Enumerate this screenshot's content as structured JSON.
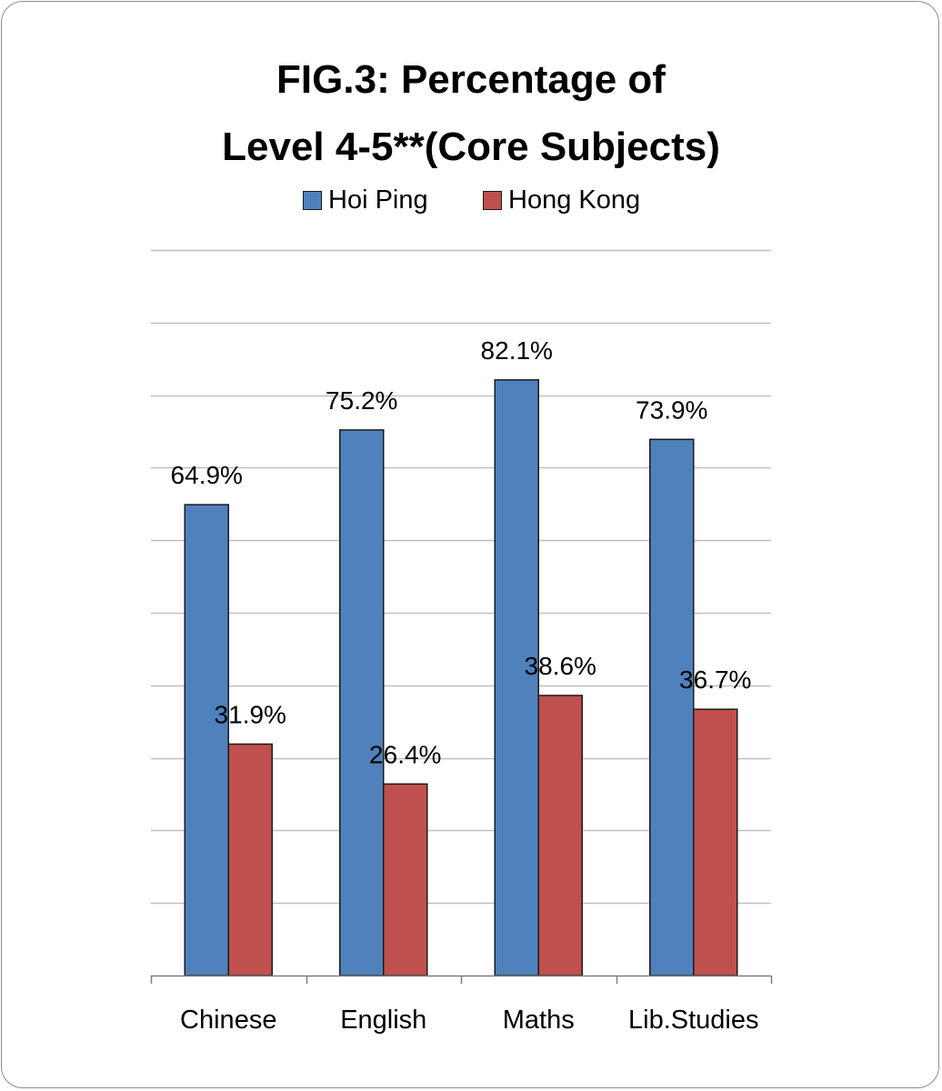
{
  "chart_data": {
    "type": "bar",
    "title_line1": "FIG.3: Percentage of",
    "title_line2": "Level 4-5**(Core Subjects)",
    "xlabel": "",
    "ylabel": "",
    "ylim": [
      0,
      100
    ],
    "grid": true,
    "legend_position": "top",
    "categories": [
      "Chinese",
      "English",
      "Maths",
      "Lib.Studies"
    ],
    "series": [
      {
        "name": "Hoi Ping",
        "color": "#4f81bd",
        "values": [
          64.9,
          75.2,
          82.1,
          73.9
        ],
        "labels": [
          "64.9%",
          "75.2%",
          "82.1%",
          "73.9%"
        ]
      },
      {
        "name": "Hong Kong",
        "color": "#c0504d",
        "values": [
          31.9,
          26.4,
          38.6,
          36.7
        ],
        "labels": [
          "31.9%",
          "26.4%",
          "38.6%",
          "36.7%"
        ]
      }
    ]
  }
}
